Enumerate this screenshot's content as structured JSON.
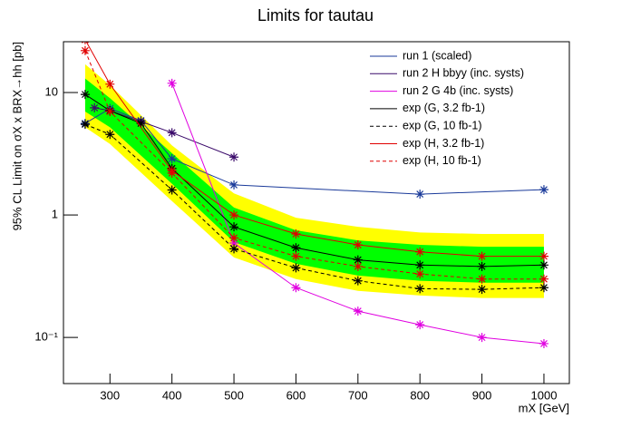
{
  "chart_data": {
    "type": "line",
    "title": "Limits for tautau",
    "x_label": "mX [GeV]",
    "y_label": "95% CL Limit on σX x BRX→hh [pb]",
    "xlim": [
      225,
      1041
    ],
    "xticks": [
      300,
      400,
      500,
      600,
      700,
      800,
      900,
      1000
    ],
    "ylim": [
      0.042,
      26
    ],
    "log_y": true,
    "yticks": [
      {
        "value": 0.1,
        "label": "10⁻¹"
      },
      1,
      10
    ],
    "legend": "top-right",
    "band_2sigma": {
      "color": "#ffff00",
      "x": [
        260,
        300,
        400,
        500,
        600,
        700,
        800,
        900,
        1000
      ],
      "lower": [
        5.2,
        3.8,
        1.3,
        0.45,
        0.3,
        0.24,
        0.22,
        0.21,
        0.21
      ],
      "upper": [
        17,
        11.5,
        3.7,
        1.5,
        0.95,
        0.8,
        0.72,
        0.7,
        0.7
      ]
    },
    "band_1sigma": {
      "color": "#00ff00",
      "x": [
        260,
        300,
        400,
        500,
        600,
        700,
        800,
        900,
        1000
      ],
      "lower": [
        7,
        5.2,
        1.8,
        0.6,
        0.4,
        0.32,
        0.29,
        0.28,
        0.28
      ],
      "upper": [
        13,
        9,
        3.2,
        1.15,
        0.75,
        0.62,
        0.57,
        0.55,
        0.55
      ]
    },
    "series": [
      {
        "name": "run 1 (scaled)",
        "color": "#1a3a9a",
        "dashed": false,
        "x": [
          260,
          300,
          350,
          400,
          500,
          800,
          1000
        ],
        "values": [
          5.6,
          7.4,
          5.9,
          2.88,
          1.76,
          1.48,
          1.61
        ]
      },
      {
        "name": "run 2 H bbyy (inc. systs)",
        "color": "#3a0a6a",
        "dashed": false,
        "x": [
          275,
          300,
          350,
          400,
          500
        ],
        "values": [
          7.5,
          7.1,
          5.8,
          4.7,
          2.97
        ]
      },
      {
        "name": "run 2 G 4b (inc. systs)",
        "color": "#e000e0",
        "dashed": false,
        "x": [
          400,
          500,
          600,
          700,
          800,
          900,
          1000
        ],
        "values": [
          11.9,
          0.59,
          0.255,
          0.164,
          0.127,
          0.1,
          0.089
        ]
      },
      {
        "name": "exp (G, 3.2 fb-1)",
        "color": "#000000",
        "dashed": false,
        "x": [
          260,
          300,
          350,
          400,
          500,
          600,
          700,
          800,
          900,
          1000
        ],
        "values": [
          9.65,
          7.1,
          5.6,
          2.4,
          0.8,
          0.54,
          0.43,
          0.39,
          0.38,
          0.39
        ]
      },
      {
        "name": "exp (G, 10 fb-1)",
        "color": "#000000",
        "dashed": true,
        "x": [
          260,
          300,
          400,
          500,
          600,
          700,
          800,
          900,
          1000
        ],
        "values": [
          5.5,
          4.55,
          1.6,
          0.53,
          0.37,
          0.29,
          0.25,
          0.247,
          0.255
        ]
      },
      {
        "name": "exp (H, 3.2 fb-1)",
        "color": "#e00000",
        "dashed": false,
        "x": [
          260,
          300,
          400,
          500,
          600,
          700,
          800,
          900,
          1000
        ],
        "values": [
          27,
          11.7,
          2.3,
          1.0,
          0.7,
          0.57,
          0.5,
          0.46,
          0.46
        ]
      },
      {
        "name": "exp (H, 10 fb-1)",
        "color": "#e00000",
        "dashed": true,
        "x": [
          260,
          300,
          400,
          500,
          600,
          700,
          800,
          900,
          1000
        ],
        "values": [
          22,
          7.0,
          2.2,
          0.65,
          0.46,
          0.38,
          0.33,
          0.3,
          0.3
        ]
      }
    ]
  }
}
